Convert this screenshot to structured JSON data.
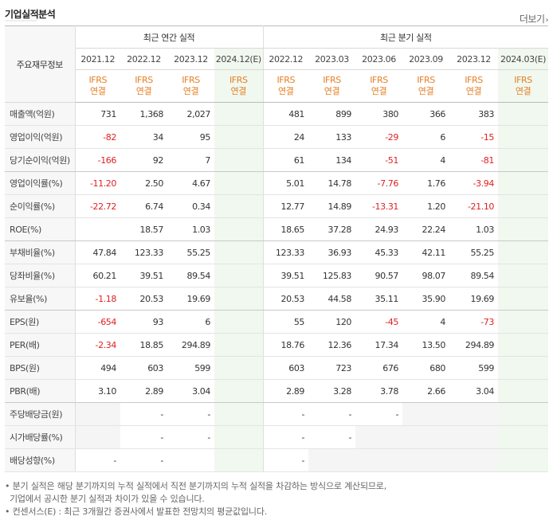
{
  "section_title": "기업실적분석",
  "more_label": "더보기",
  "more_chevron": "›",
  "header": {
    "label_col": "주요재무정보",
    "annual_group": "최근 연간 실적",
    "quarter_group": "최근 분기 실적",
    "periods": [
      "2021.12",
      "2022.12",
      "2023.12",
      "2024.12(E)",
      "2022.12",
      "2023.03",
      "2023.06",
      "2023.09",
      "2023.12",
      "2024.03(E)"
    ],
    "ifrs": "IFRS",
    "consol": "연결"
  },
  "rows": [
    {
      "label": "매출액(억원)",
      "values": [
        "731",
        "1,368",
        "2,027",
        "",
        "481",
        "899",
        "380",
        "366",
        "383",
        ""
      ]
    },
    {
      "label": "영업이익(억원)",
      "values": [
        "-82",
        "34",
        "95",
        "",
        "24",
        "133",
        "-29",
        "6",
        "-15",
        ""
      ]
    },
    {
      "label": "당기순이익(억원)",
      "values": [
        "-166",
        "92",
        "7",
        "",
        "61",
        "134",
        "-51",
        "4",
        "-81",
        ""
      ]
    },
    {
      "label": "영업이익률(%)",
      "values": [
        "-11.20",
        "2.50",
        "4.67",
        "",
        "5.01",
        "14.78",
        "-7.76",
        "1.76",
        "-3.94",
        ""
      ]
    },
    {
      "label": "순이익률(%)",
      "values": [
        "-22.72",
        "6.74",
        "0.34",
        "",
        "12.77",
        "14.89",
        "-13.31",
        "1.20",
        "-21.10",
        ""
      ]
    },
    {
      "label": "ROE(%)",
      "values": [
        "",
        "18.57",
        "1.03",
        "",
        "18.65",
        "37.28",
        "24.93",
        "22.24",
        "1.03",
        ""
      ]
    },
    {
      "label": "부채비율(%)",
      "values": [
        "47.84",
        "123.33",
        "55.25",
        "",
        "123.33",
        "36.93",
        "45.33",
        "42.11",
        "55.25",
        ""
      ]
    },
    {
      "label": "당좌비율(%)",
      "values": [
        "60.21",
        "39.51",
        "89.54",
        "",
        "39.51",
        "125.83",
        "90.57",
        "98.07",
        "89.54",
        ""
      ]
    },
    {
      "label": "유보율(%)",
      "values": [
        "-1.18",
        "20.53",
        "19.69",
        "",
        "20.53",
        "44.58",
        "35.11",
        "35.90",
        "19.69",
        ""
      ]
    },
    {
      "label": "EPS(원)",
      "values": [
        "-654",
        "93",
        "6",
        "",
        "55",
        "120",
        "-45",
        "4",
        "-73",
        ""
      ]
    },
    {
      "label": "PER(배)",
      "values": [
        "-2.34",
        "18.85",
        "294.89",
        "",
        "18.76",
        "12.36",
        "17.34",
        "13.50",
        "294.89",
        ""
      ]
    },
    {
      "label": "BPS(원)",
      "values": [
        "494",
        "603",
        "599",
        "",
        "603",
        "723",
        "676",
        "680",
        "599",
        ""
      ]
    },
    {
      "label": "PBR(배)",
      "values": [
        "3.10",
        "2.89",
        "3.04",
        "",
        "2.89",
        "3.28",
        "3.78",
        "2.66",
        "3.04",
        ""
      ]
    },
    {
      "label": "주당배당금(원)",
      "values": [
        "",
        "-",
        "-",
        "",
        "-",
        "-",
        "-",
        "",
        "",
        ""
      ]
    },
    {
      "label": "시가배당률(%)",
      "values": [
        "",
        "-",
        "-",
        "",
        "-",
        "-",
        "",
        "",
        "",
        ""
      ]
    },
    {
      "label": "배당성향(%)",
      "values": [
        "-",
        "-",
        "",
        "",
        "-",
        "",
        "",
        "",
        "",
        ""
      ]
    }
  ],
  "notes": [
    "• 분기 실적은 해당 분기까지의 누적 실적에서 직전 분기까지의 누적 실적을 차감하는 방식으로 계산되므로,",
    "  기업에서 공시한 분기 실적과 차이가 있을 수 있습니다.",
    "• 컨센서스(E) : 최근 3개월간 증권사에서 발표한 전망치의 평균값입니다."
  ],
  "colors": {
    "negative": "#e02020",
    "ifrs": "#e67e22",
    "estimate_bg": "#f1f8ef"
  }
}
